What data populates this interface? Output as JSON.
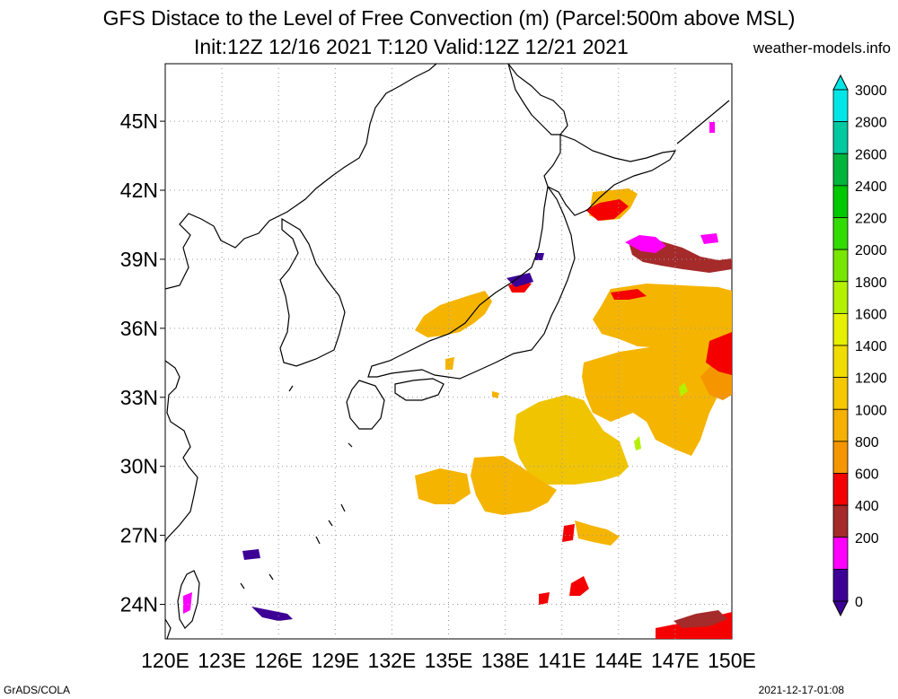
{
  "title": {
    "line1": "GFS Distace to the Level of Free Convection (m) (Parcel:500m above MSL)",
    "line2": "Init:12Z 12/16 2021 T:120 Valid:12Z 12/21 2021",
    "site": "weather-models.info"
  },
  "footer": {
    "left": "GrADS/COLA",
    "right": "2021-12-17-01:08"
  },
  "map": {
    "lon_range": [
      120,
      150
    ],
    "lat_range": [
      22.5,
      47.5
    ],
    "x_ticks": [
      "120E",
      "123E",
      "126E",
      "129E",
      "132E",
      "135E",
      "138E",
      "141E",
      "144E",
      "147E",
      "150E"
    ],
    "y_ticks": [
      "45N",
      "42N",
      "39N",
      "36N",
      "33N",
      "30N",
      "27N",
      "24N"
    ],
    "grid": "dotted"
  },
  "colorbar": {
    "levels": [
      "3000",
      "2800",
      "2600",
      "2400",
      "2200",
      "2000",
      "1800",
      "1600",
      "1400",
      "1200",
      "1000",
      "800",
      "600",
      "400",
      "200",
      "0"
    ],
    "colors": [
      "#00e6e6",
      "#00c8a0",
      "#00b43c",
      "#00c800",
      "#32dc00",
      "#78e600",
      "#b4f000",
      "#e6f000",
      "#f0dc00",
      "#f5c800",
      "#f5b000",
      "#f59600",
      "#f50000",
      "#a52a2a",
      "#ff00ff",
      "#3c0096"
    ]
  },
  "field_colors": {
    "gold": "#f5b400",
    "gold2": "#f0c400",
    "orange": "#f59600",
    "red": "#f50000",
    "brown": "#a52a2a",
    "magenta": "#ff00ff",
    "purple": "#3c0096",
    "lime": "#b4f000"
  }
}
